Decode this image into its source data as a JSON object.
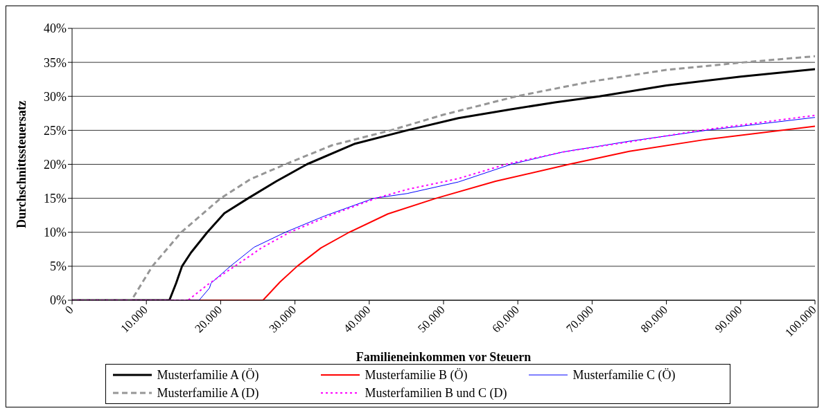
{
  "chart_data": {
    "type": "line",
    "xlabel": "Familieneinkommen vor Steuern",
    "ylabel": "Durchschnittssteuersatz",
    "xlim": [
      0,
      100000
    ],
    "xticks": [
      0,
      {
        "value": 10000,
        "label": "10.000"
      },
      {
        "value": 20000,
        "label": "20.000"
      },
      {
        "value": 30000,
        "label": "30.000"
      },
      {
        "value": 40000,
        "label": "40.000"
      },
      {
        "value": 50000,
        "label": "50.000"
      },
      {
        "value": 60000,
        "label": "60.000"
      },
      {
        "value": 70000,
        "label": "70.000"
      },
      {
        "value": 80000,
        "label": "80.000"
      },
      {
        "value": 90000,
        "label": "90.000"
      },
      {
        "value": 100000,
        "label": "100.000"
      }
    ],
    "ylim": [
      0,
      40
    ],
    "yticks": [
      {
        "value": 0,
        "label": "0%"
      },
      {
        "value": 5,
        "label": "5%"
      },
      {
        "value": 10,
        "label": "10%"
      },
      {
        "value": 15,
        "label": "15%"
      },
      {
        "value": 20,
        "label": "20%"
      },
      {
        "value": 25,
        "label": "25%"
      },
      {
        "value": 30,
        "label": "30%"
      },
      {
        "value": 35,
        "label": "35%"
      },
      {
        "value": 40,
        "label": "40%"
      }
    ],
    "grid": "y",
    "legend": "bottom",
    "marker": "none",
    "series": [
      {
        "name": "Musterfamilie A (Ö)",
        "color": "#000000",
        "line_style": "solid",
        "x": [
          0,
          13100,
          14000,
          14800,
          16000,
          18200,
          20500,
          23700,
          27500,
          31600,
          38000,
          45100,
          52000,
          59100,
          65000,
          71000,
          80000,
          90000,
          100000
        ],
        "values": [
          0,
          0,
          2.5,
          5,
          7,
          10,
          12.8,
          15,
          17.5,
          20,
          23,
          25,
          26.8,
          28.1,
          29.1,
          30,
          31.6,
          32.9,
          34
        ]
      },
      {
        "name": "Musterfamilie B (Ö)",
        "color": "#ff0000",
        "line_style": "solid",
        "x": [
          0,
          25700,
          28000,
          30300,
          33500,
          37300,
          42500,
          49000,
          57000,
          66900,
          75000,
          85000,
          100000
        ],
        "values": [
          0,
          0,
          2.7,
          5,
          7.7,
          10,
          12.7,
          15,
          17.5,
          20,
          21.9,
          23.6,
          25.6
        ]
      },
      {
        "name": "Musterfamilie C (Ö)",
        "color": "#0000ff",
        "line_style": "solid",
        "x": [
          0,
          17100,
          18500,
          18700,
          21300,
          24500,
          28700,
          34000,
          40600,
          45100,
          52000,
          59100,
          66000,
          75000,
          85400,
          100000
        ],
        "values": [
          0,
          0,
          1.8,
          2.5,
          5,
          7.8,
          10,
          12.4,
          15,
          15.7,
          17.4,
          20,
          21.8,
          23.4,
          25,
          26.9
        ]
      },
      {
        "name": "Musterfamilie A (D)",
        "color": "#969696",
        "line_style": "dashed",
        "x": [
          0,
          8000,
          10800,
          14700,
          20000,
          24000,
          28700,
          35000,
          42900,
          50000,
          59800,
          70000,
          80000,
          90400,
          100000
        ],
        "values": [
          0,
          0,
          5,
          10,
          15,
          17.8,
          20,
          22.8,
          25,
          27.3,
          30,
          32.2,
          33.9,
          35,
          35.9
        ]
      },
      {
        "name": "Musterfamilien B und C (D)",
        "color": "#ff00ff",
        "line_style": "dotted",
        "x": [
          0,
          15600,
          18500,
          21900,
          25500,
          29300,
          35000,
          40900,
          45100,
          52000,
          58400,
          66000,
          75000,
          84600,
          100000
        ],
        "values": [
          0,
          0,
          2.5,
          5,
          7.7,
          10,
          12.6,
          15,
          16.3,
          17.9,
          20,
          21.8,
          23.3,
          25,
          27.2
        ]
      }
    ]
  }
}
